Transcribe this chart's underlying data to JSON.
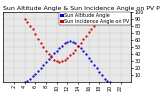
{
  "title": "Sun Altitude Angle & Sun Incidence Angle on PV Panels",
  "xlim": [
    0,
    24
  ],
  "ylim": [
    0,
    100
  ],
  "yticks": [
    10,
    20,
    30,
    40,
    50,
    60,
    70,
    80,
    90,
    100
  ],
  "xticks": [
    2,
    4,
    6,
    8,
    10,
    12,
    14,
    16,
    18,
    20,
    22
  ],
  "legend_labels": [
    "Sun Altitude Angle",
    "Sun Incidence Angle on PV"
  ],
  "legend_colors": [
    "#0000cc",
    "#cc0000"
  ],
  "background_color": "#ffffff",
  "plot_bg_color": "#e8e8e8",
  "grid_color": "#aaaaaa",
  "title_fontsize": 4.5,
  "tick_fontsize": 3.5,
  "legend_fontsize": 3.5,
  "altitude_x": [
    4,
    4.5,
    5,
    5.5,
    6,
    6.5,
    7,
    7.5,
    8,
    8.5,
    9,
    9.5,
    10,
    10.5,
    11,
    11.5,
    12,
    12.5,
    13,
    13.5,
    14,
    14.5,
    15,
    15.5,
    16,
    16.5,
    17,
    17.5,
    18,
    18.5,
    19,
    19.5,
    20
  ],
  "altitude_y": [
    0,
    2,
    5,
    8,
    12,
    16,
    20,
    24,
    28,
    33,
    37,
    41,
    45,
    49,
    52,
    55,
    57,
    58,
    57,
    55,
    52,
    48,
    44,
    40,
    35,
    30,
    25,
    20,
    15,
    10,
    5,
    2,
    0
  ],
  "incidence_x": [
    4,
    4.5,
    5,
    5.5,
    6,
    6.5,
    7,
    7.5,
    8,
    8.5,
    9,
    9.5,
    10,
    10.5,
    11,
    11.5,
    12,
    12.5,
    13,
    13.5,
    14,
    14.5,
    15,
    15.5,
    16,
    16.5,
    17,
    17.5,
    18,
    18.5,
    19,
    19.5,
    20
  ],
  "incidence_y": [
    90,
    85,
    80,
    75,
    68,
    62,
    56,
    50,
    45,
    40,
    36,
    32,
    30,
    29,
    30,
    32,
    35,
    38,
    42,
    46,
    51,
    56,
    61,
    66,
    71,
    76,
    80,
    84,
    87,
    90,
    90,
    90,
    90
  ]
}
